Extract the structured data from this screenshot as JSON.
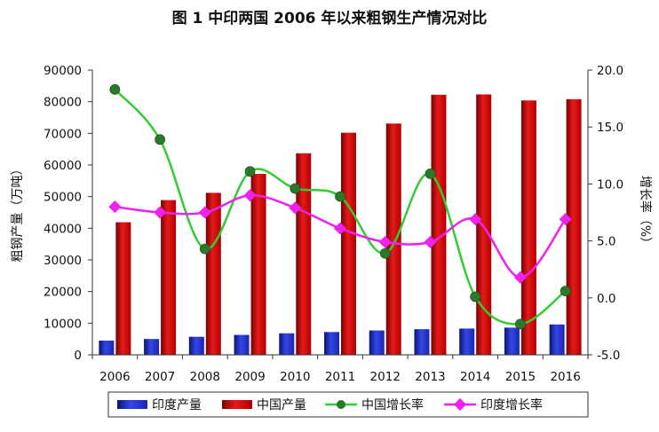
{
  "chart_data": {
    "type": "bar",
    "title": "图 1    中印两国 2006 年以来粗钢生产情况对比",
    "categories": [
      "2006",
      "2007",
      "2008",
      "2009",
      "2010",
      "2011",
      "2012",
      "2013",
      "2014",
      "2015",
      "2016"
    ],
    "ylabel": "粗钢产量（万吨）",
    "y2label": "增长率（%）",
    "ylim": [
      0,
      90000
    ],
    "y2lim": [
      -5.0,
      20.0
    ],
    "yticks": [
      "0",
      "10000",
      "20000",
      "30000",
      "40000",
      "50000",
      "60000",
      "70000",
      "80000",
      "90000"
    ],
    "y2ticks": [
      "-5.0",
      "0.0",
      "5.0",
      "10.0",
      "15.0",
      "20.0"
    ],
    "legend_position": "bottom",
    "grid": false,
    "series": [
      {
        "name": "印度产量",
        "kind": "bar",
        "axis": "left",
        "color": "#1f2bbf",
        "values": [
          4500,
          5000,
          5700,
          6300,
          6800,
          7200,
          7700,
          8100,
          8300,
          8600,
          9600
        ]
      },
      {
        "name": "中国产量",
        "kind": "bar",
        "axis": "left",
        "color": "#cc0000",
        "values": [
          41900,
          48900,
          51200,
          57200,
          63700,
          70200,
          73100,
          82200,
          82300,
          80400,
          80800
        ]
      },
      {
        "name": "中国增长率",
        "kind": "line",
        "axis": "right",
        "color": "#33cc33",
        "marker_color": "#2b7a2b",
        "values": [
          18.3,
          13.9,
          4.3,
          11.1,
          9.6,
          8.9,
          3.9,
          10.9,
          0.1,
          -2.3,
          0.6
        ]
      },
      {
        "name": "印度增长率",
        "kind": "line",
        "axis": "right",
        "color": "#ee22ee",
        "marker_color": "#ee22ee",
        "values": [
          8.0,
          7.5,
          7.5,
          9.0,
          7.9,
          6.1,
          4.9,
          4.9,
          6.9,
          1.8,
          6.9
        ]
      }
    ]
  }
}
